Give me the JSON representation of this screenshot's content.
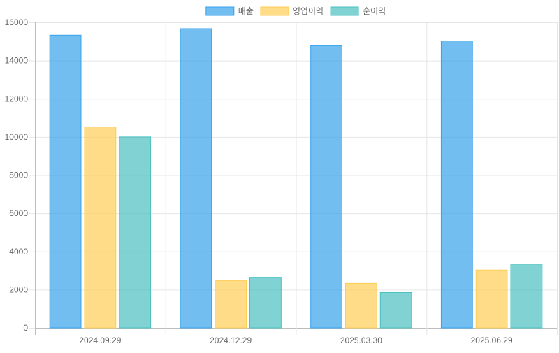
{
  "chart_data": {
    "type": "bar",
    "categories": [
      "2024.09.29",
      "2024.12.29",
      "2025.03.30",
      "2025.06.29"
    ],
    "series": [
      {
        "name": "매출",
        "values": [
          15330,
          15670,
          14780,
          15030
        ],
        "fill": "#36a2eb",
        "border": "#36a2eb"
      },
      {
        "name": "영업이익",
        "values": [
          10520,
          2480,
          2330,
          3030
        ],
        "fill": "#ffcd56",
        "border": "#ffcd56"
      },
      {
        "name": "순이익",
        "values": [
          10000,
          2650,
          1850,
          3340
        ],
        "fill": "#4bc0c0",
        "border": "#4bc0c0"
      }
    ],
    "ylim": [
      0,
      16000
    ],
    "yticks": [
      0,
      2000,
      4000,
      6000,
      8000,
      10000,
      12000,
      14000,
      16000
    ],
    "grid": true,
    "legend_position": "top-center",
    "title": "",
    "xlabel": "",
    "ylabel": ""
  }
}
